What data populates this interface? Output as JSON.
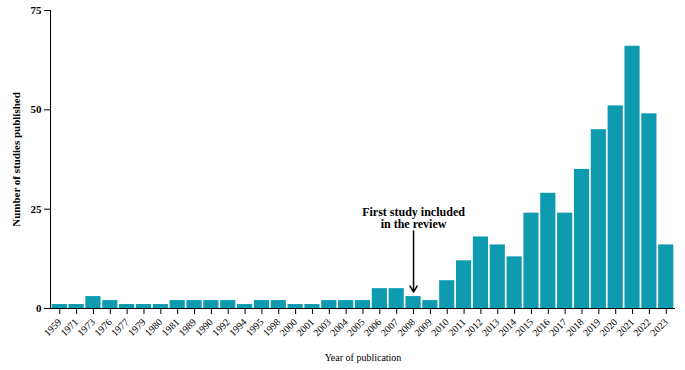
{
  "chart_data": {
    "type": "bar",
    "x_label": "Year of publication",
    "y_label": "Number of studies published",
    "categories": [
      "1959",
      "1971",
      "1973",
      "1976",
      "1977",
      "1979",
      "1980",
      "1981",
      "1989",
      "1990",
      "1992",
      "1994",
      "1995",
      "1998",
      "2000",
      "2001",
      "2003",
      "2004",
      "2005",
      "2006",
      "2007",
      "2008",
      "2009",
      "2010",
      "2011",
      "2012",
      "2013",
      "2014",
      "2015",
      "2016",
      "2017",
      "2018",
      "2019",
      "2020",
      "2021",
      "2022",
      "2023"
    ],
    "values": [
      1,
      1,
      3,
      2,
      1,
      1,
      1,
      2,
      2,
      2,
      2,
      1,
      2,
      2,
      1,
      1,
      2,
      2,
      2,
      5,
      5,
      3,
      2,
      7,
      12,
      18,
      16,
      13,
      24,
      29,
      24,
      35,
      45,
      51,
      66,
      49,
      16
    ],
    "color": "#0e9bb0",
    "ylim": [
      0,
      75
    ],
    "yticks": [
      0,
      25,
      50,
      75
    ],
    "grid": false,
    "annotations": [
      {
        "text": "First study included\nin the review",
        "x": "2008"
      }
    ]
  }
}
